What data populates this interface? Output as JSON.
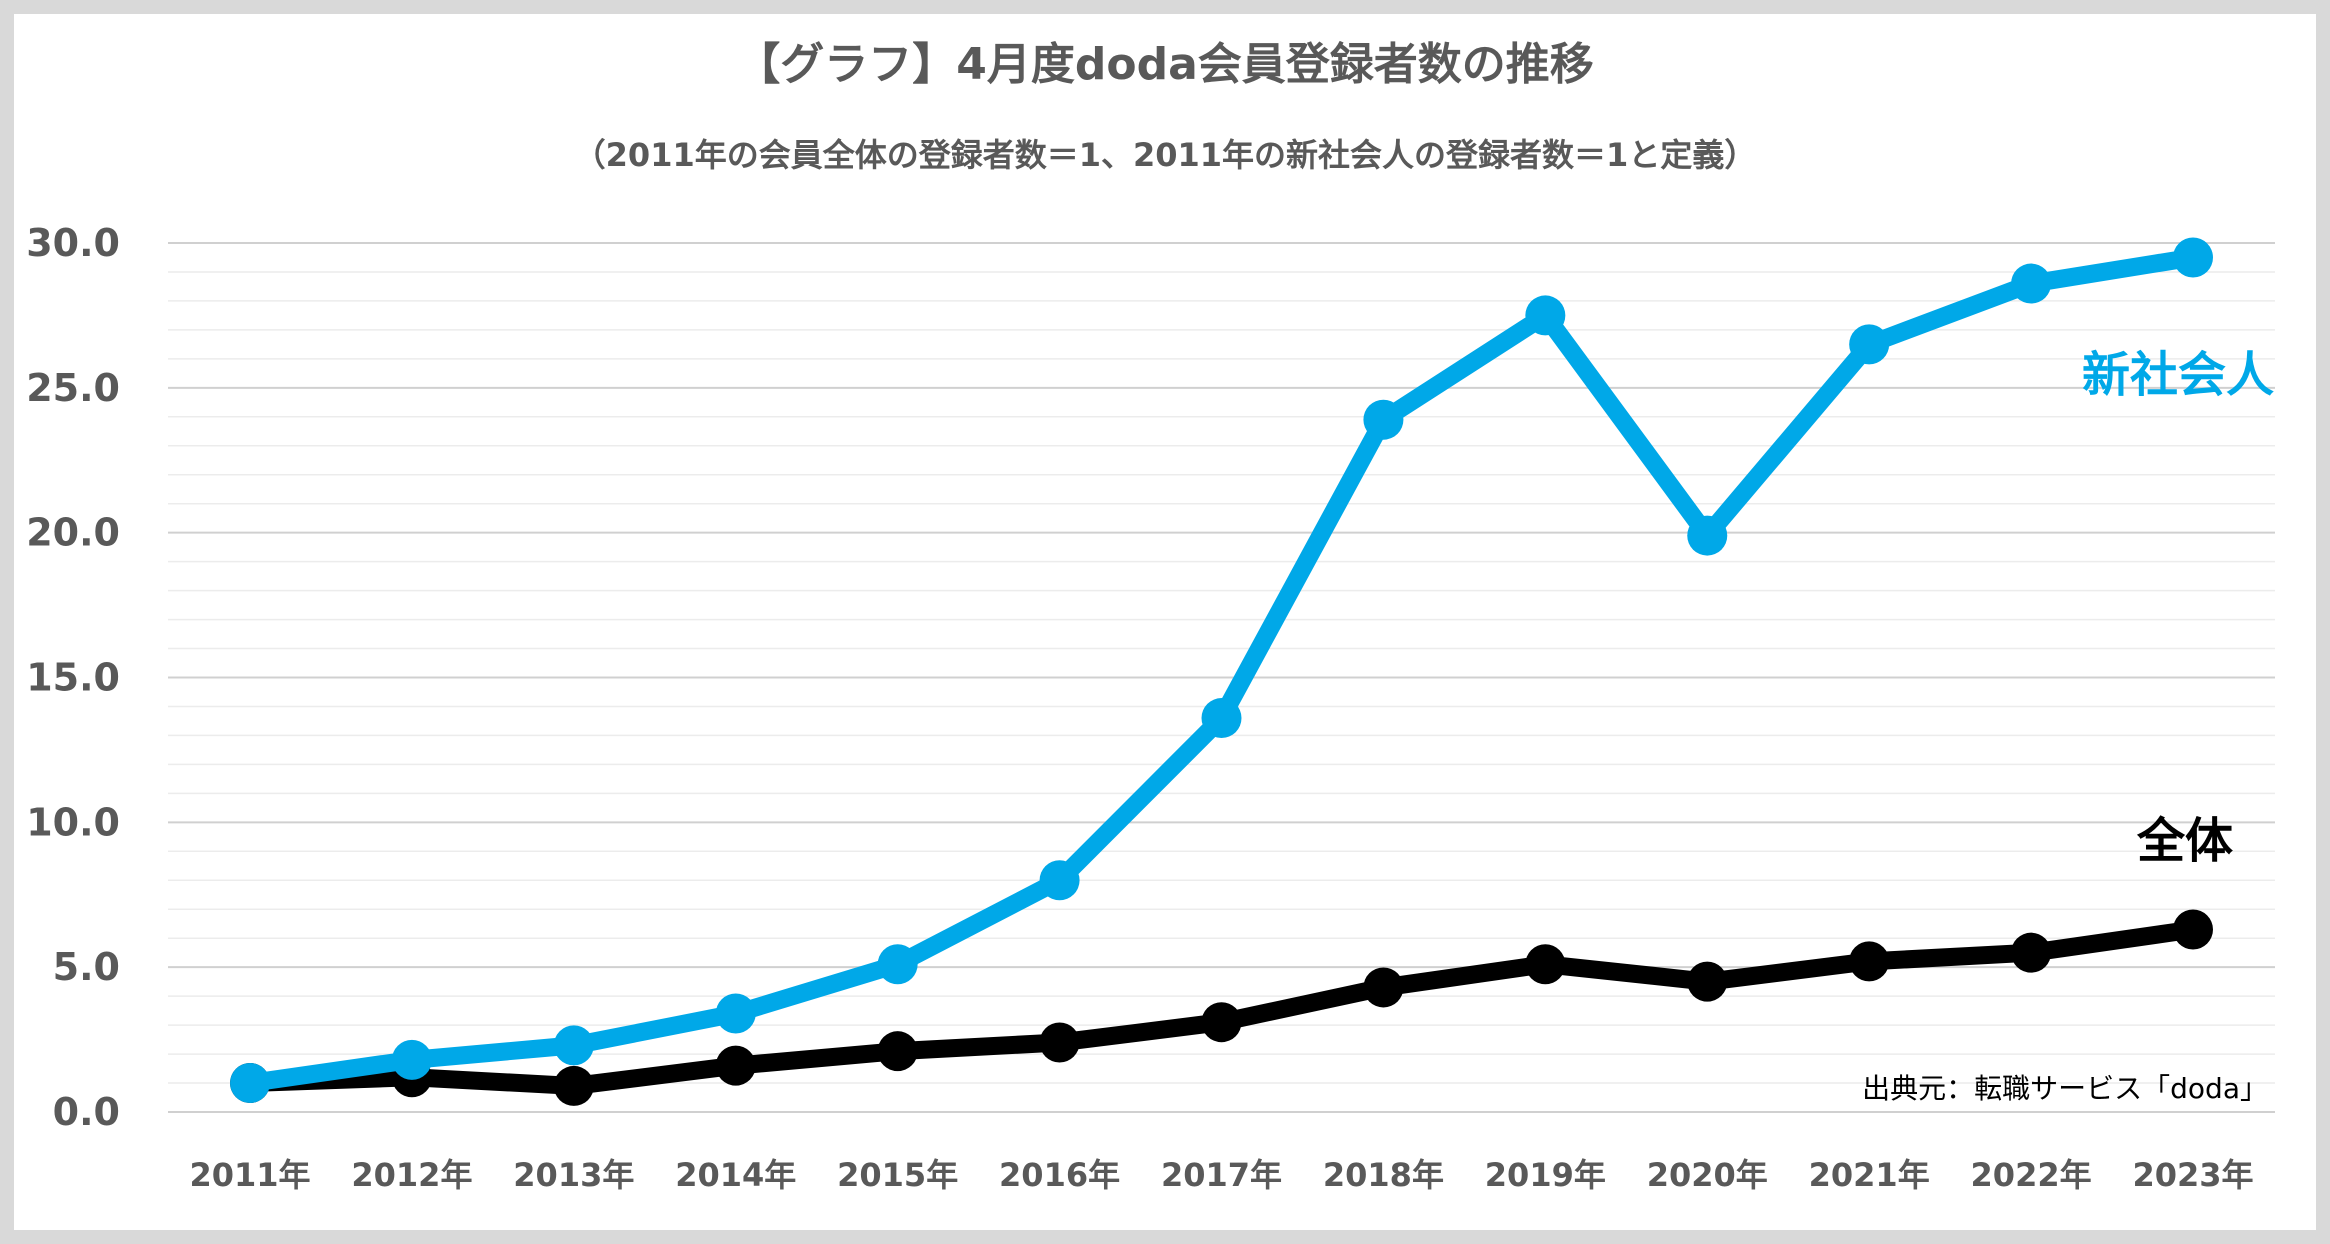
{
  "chart_data": {
    "type": "line",
    "title": "【グラフ】4月度doda会員登録者数の推移",
    "subtitle": "（2011年の会員全体の登録者数＝1、2011年の新社会人の登録者数＝1と定義）",
    "categories": [
      "2011年",
      "2012年",
      "2013年",
      "2014年",
      "2015年",
      "2016年",
      "2017年",
      "2018年",
      "2019年",
      "2020年",
      "2021年",
      "2022年",
      "2023年"
    ],
    "series": [
      {
        "name": "新社会人",
        "color": "#00a8e8",
        "values": [
          1.0,
          1.8,
          2.3,
          3.4,
          5.1,
          8.0,
          13.6,
          23.9,
          27.5,
          19.9,
          26.5,
          28.6,
          29.5
        ]
      },
      {
        "name": "全体",
        "color": "#000000",
        "values": [
          1.0,
          1.2,
          0.9,
          1.6,
          2.1,
          2.4,
          3.1,
          4.3,
          5.1,
          4.5,
          5.2,
          5.5,
          6.3
        ]
      }
    ],
    "yticks": [
      "0.0",
      "5.0",
      "10.0",
      "15.0",
      "20.0",
      "25.0",
      "30.0"
    ],
    "ylim": [
      0,
      30
    ],
    "ytick_step": 5,
    "grid": true,
    "xlabel": "",
    "ylabel": ""
  },
  "source_note": "出典元：転職サービス「doda」"
}
